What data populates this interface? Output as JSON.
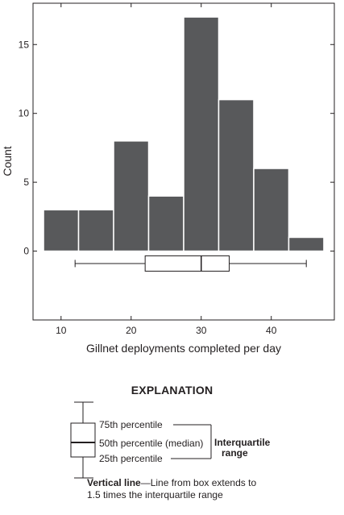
{
  "chart_data": {
    "type": "histogram",
    "bins": [
      {
        "start": 7.5,
        "end": 12.5,
        "count": 3
      },
      {
        "start": 12.5,
        "end": 17.5,
        "count": 3
      },
      {
        "start": 17.5,
        "end": 22.5,
        "count": 8
      },
      {
        "start": 22.5,
        "end": 27.5,
        "count": 4
      },
      {
        "start": 27.5,
        "end": 32.5,
        "count": 17
      },
      {
        "start": 32.5,
        "end": 37.5,
        "count": 11
      },
      {
        "start": 37.5,
        "end": 42.5,
        "count": 6
      },
      {
        "start": 42.5,
        "end": 47.5,
        "count": 1
      }
    ],
    "boxplot": {
      "whisker_low": 12,
      "q1": 22,
      "median": 30,
      "q3": 34,
      "whisker_high": 45
    },
    "xlabel": "Gillnet deployments completed per day",
    "ylabel": "Count",
    "xlim": [
      6,
      49
    ],
    "ylim": [
      -5,
      18
    ],
    "xticks": [
      10,
      20,
      30,
      40
    ],
    "yticks": [
      0,
      5,
      10,
      15
    ],
    "grid": false,
    "colors": {
      "bar": "#58595b",
      "bar_edge": "#ffffff",
      "axis": "#231f20"
    }
  },
  "explanation": {
    "title": "EXPLANATION",
    "q3_label": "75th percentile",
    "median_label": "50th percentile (median)",
    "q1_label": "25th percentile",
    "iqr_label_1": "Interquartile",
    "iqr_label_2": "range",
    "vertical_line_term": "Vertical line",
    "vertical_line_desc": "—Line from box extends to 1.5 times the interquartile range"
  }
}
